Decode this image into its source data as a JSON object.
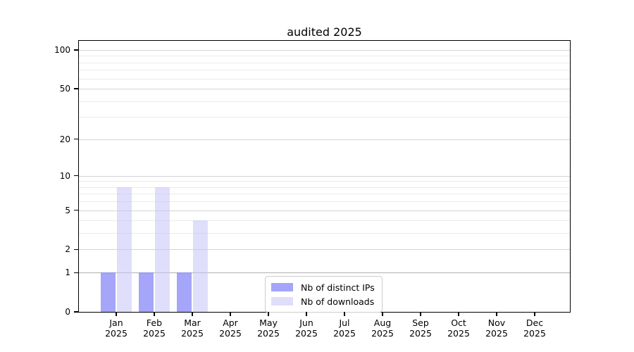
{
  "chart_data": {
    "type": "bar",
    "title": "audited 2025",
    "categories": [
      [
        "Jan",
        "2025"
      ],
      [
        "Feb",
        "2025"
      ],
      [
        "Mar",
        "2025"
      ],
      [
        "Apr",
        "2025"
      ],
      [
        "May",
        "2025"
      ],
      [
        "Jun",
        "2025"
      ],
      [
        "Jul",
        "2025"
      ],
      [
        "Aug",
        "2025"
      ],
      [
        "Sep",
        "2025"
      ],
      [
        "Oct",
        "2025"
      ],
      [
        "Nov",
        "2025"
      ],
      [
        "Dec",
        "2025"
      ]
    ],
    "series": [
      {
        "name": "Nb of distinct IPs",
        "color": "rgba(130,130,246,0.72)",
        "solid_color": "#aaaaf8",
        "values": [
          1,
          1,
          1,
          0,
          0,
          0,
          0,
          0,
          0,
          0,
          0,
          0
        ]
      },
      {
        "name": "Nb of downloads",
        "color": "rgba(197,197,247,0.55)",
        "solid_color": "#dedefb",
        "values": [
          8,
          8,
          4,
          0,
          0,
          0,
          0,
          0,
          0,
          0,
          0,
          0
        ]
      }
    ],
    "y_axis": {
      "scale": "pseudo-log log10(1+v)",
      "major_ticks": [
        0,
        1,
        2,
        5,
        10,
        20,
        50,
        100
      ],
      "minor_gridlines": [
        3,
        4,
        6,
        7,
        8,
        9,
        30,
        40,
        60,
        70,
        80,
        90
      ],
      "range": [
        0,
        117
      ]
    },
    "x_axis": {
      "label_lines": 2
    },
    "legend": {
      "entries": [
        "Nb of distinct IPs",
        "Nb of downloads"
      ],
      "position": "inside-bottom-center"
    },
    "grid": true,
    "colors": {
      "major_gridline": "#d4d4d4",
      "minor_gridline": "#ebebeb",
      "unit_gridline": "#b0b0b0",
      "axis": "#000000",
      "background": "#ffffff"
    }
  }
}
